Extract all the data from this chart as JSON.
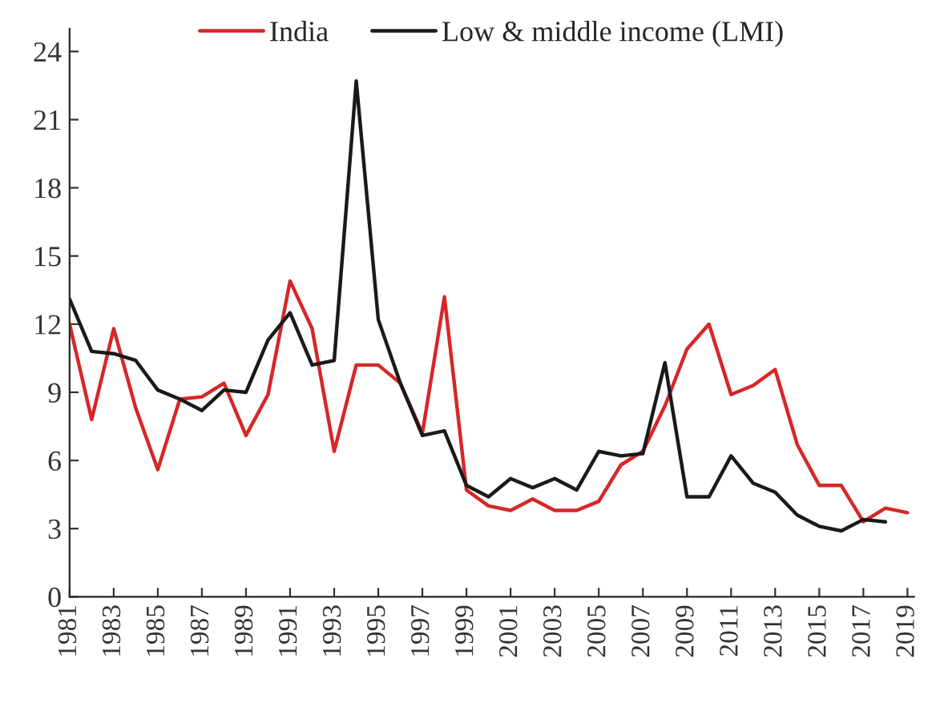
{
  "chart_data": {
    "type": "line",
    "x": [
      1981,
      1982,
      1983,
      1984,
      1985,
      1986,
      1987,
      1988,
      1989,
      1990,
      1991,
      1992,
      1993,
      1994,
      1995,
      1996,
      1997,
      1998,
      1999,
      2000,
      2001,
      2002,
      2003,
      2004,
      2005,
      2006,
      2007,
      2008,
      2009,
      2010,
      2011,
      2012,
      2013,
      2014,
      2015,
      2016,
      2017,
      2018,
      2019
    ],
    "series": [
      {
        "name": "India",
        "color": "#d62728",
        "values": [
          12.0,
          7.8,
          11.8,
          8.3,
          5.6,
          8.7,
          8.8,
          9.4,
          7.1,
          8.9,
          13.9,
          11.8,
          6.4,
          10.2,
          10.2,
          9.4,
          7.2,
          13.2,
          4.7,
          4.0,
          3.8,
          4.3,
          3.8,
          3.8,
          4.2,
          5.8,
          6.4,
          8.4,
          10.9,
          12.0,
          8.9,
          9.3,
          10.0,
          6.7,
          4.9,
          4.9,
          3.3,
          3.9,
          3.7
        ]
      },
      {
        "name": "Low & middle income (LMI)",
        "color": "#1a1a1a",
        "values": [
          13.1,
          10.8,
          10.7,
          10.4,
          9.1,
          8.7,
          8.2,
          9.1,
          9.0,
          11.3,
          12.5,
          10.2,
          10.4,
          22.7,
          12.2,
          9.4,
          7.1,
          7.3,
          4.9,
          4.4,
          5.2,
          4.8,
          5.2,
          4.7,
          6.4,
          6.2,
          6.3,
          10.3,
          4.4,
          4.4,
          6.2,
          5.0,
          4.6,
          3.6,
          3.1,
          2.9,
          3.4,
          3.3,
          null
        ]
      }
    ],
    "xlim": [
      1981,
      2019.3
    ],
    "xticks": [
      1981,
      1983,
      1985,
      1987,
      1989,
      1991,
      1993,
      1995,
      1997,
      1999,
      2001,
      2003,
      2005,
      2007,
      2009,
      2011,
      2013,
      2015,
      2017,
      2019
    ],
    "ylim": [
      0,
      25
    ],
    "yticks": [
      0,
      3,
      6,
      9,
      12,
      15,
      18,
      21,
      24
    ],
    "grid": false,
    "legend": "top",
    "marker": "none",
    "line_style": "solid"
  }
}
